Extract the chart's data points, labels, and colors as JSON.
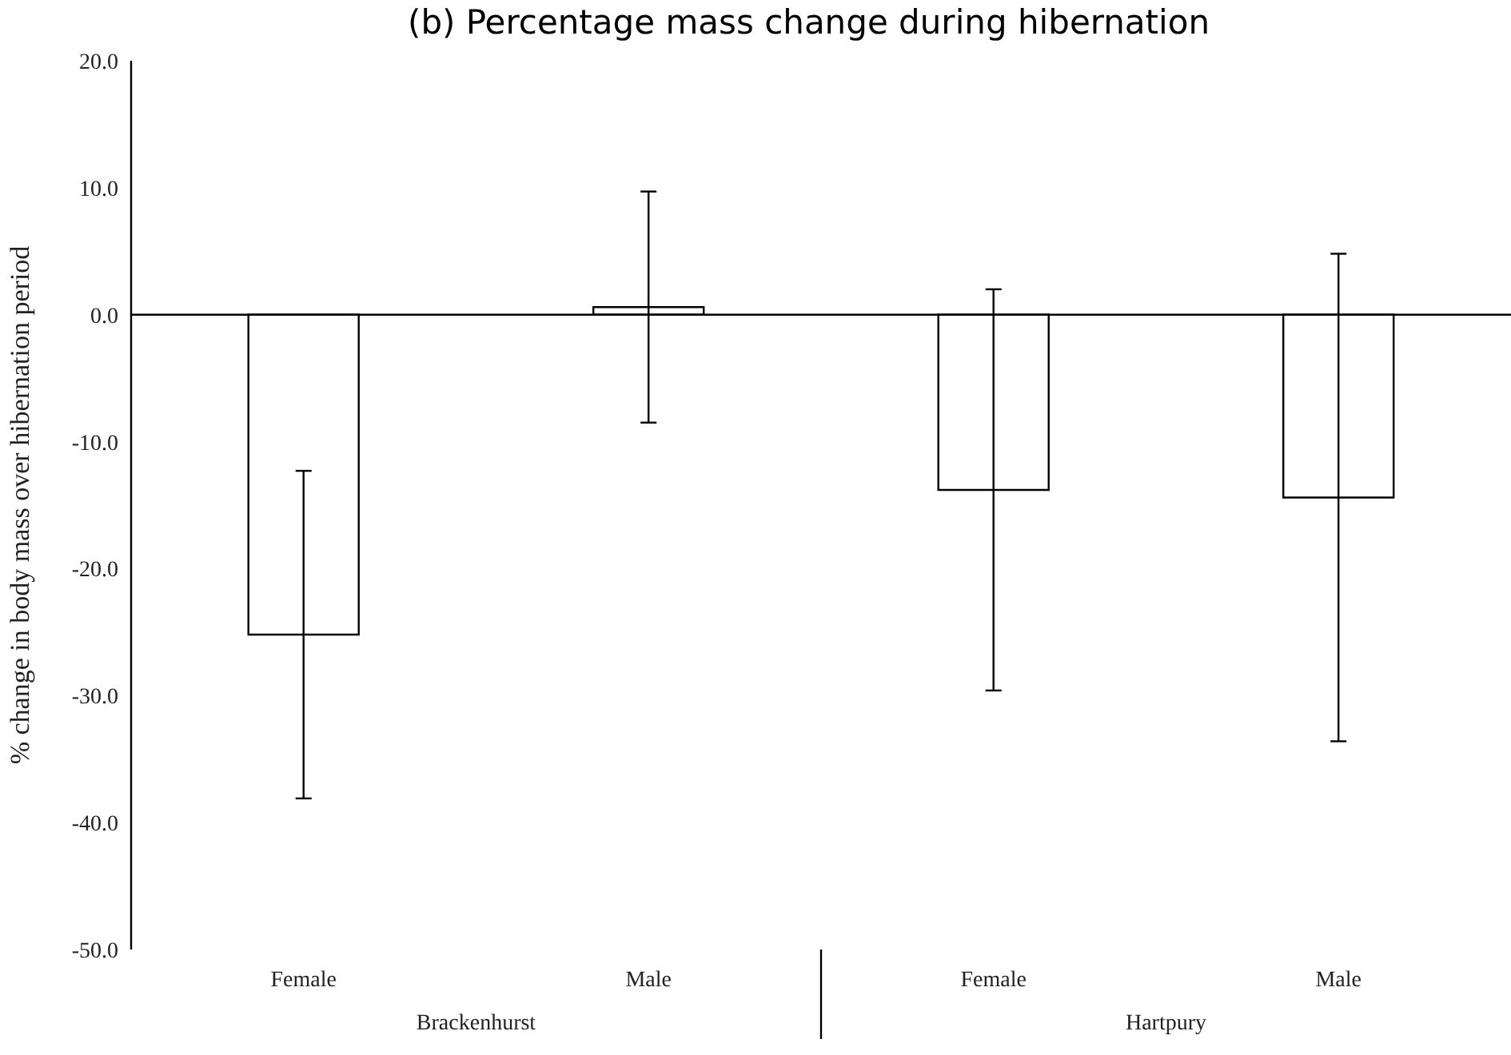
{
  "chart_data": {
    "type": "bar",
    "title": "(b) Percentage mass change during hibernation",
    "ylabel": "% change in body mass over hibernation period",
    "categories": [
      "Female",
      "Male",
      "Female",
      "Male"
    ],
    "values": [
      -25.2,
      0.6,
      -13.8,
      -14.4
    ],
    "errors": [
      12.9,
      9.1,
      15.8,
      19.2
    ],
    "color": "#ffffff",
    "annotations": [
      "Brackenhurst",
      "Hartpury"
    ],
    "ylim": [
      -50,
      20
    ],
    "yticks": [
      {
        "value": -50,
        "label": "-50.0"
      },
      {
        "value": -40,
        "label": "-40.0"
      },
      {
        "value": -30,
        "label": "-30.0"
      },
      {
        "value": -20,
        "label": "-20.0"
      },
      {
        "value": -10,
        "label": "-10.0"
      },
      {
        "value": 0,
        "label": "0.0"
      },
      {
        "value": 10,
        "label": "10.0"
      },
      {
        "value": 20,
        "label": "20.0"
      }
    ],
    "legend": false
  }
}
